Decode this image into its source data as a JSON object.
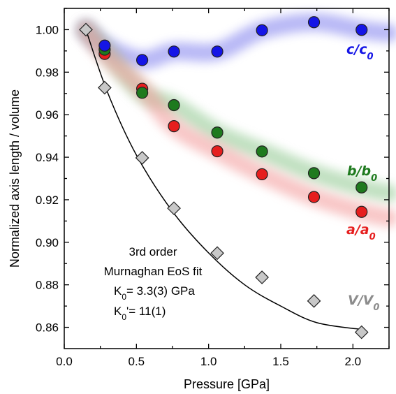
{
  "chart_data": {
    "type": "scatter",
    "xlabel": "Pressure [GPa]",
    "ylabel": "Normalized axis length / volume",
    "xlim": [
      0.0,
      2.25
    ],
    "ylim": [
      0.85,
      1.01
    ],
    "xticks": [
      "0.0",
      "0.5",
      "1.0",
      "1.5",
      "2.0"
    ],
    "yticks": [
      "0.86",
      "0.88",
      "0.90",
      "0.92",
      "0.94",
      "0.96",
      "0.98",
      "1.00"
    ],
    "grid": false,
    "series": [
      {
        "name": "c/c0",
        "label_main": "c/c",
        "label_sub": "0",
        "color": "#1515e6",
        "band_color": "#7f7fee",
        "marker": "circle",
        "points": [
          [
            0.28,
            0.9925
          ],
          [
            0.54,
            0.9857
          ],
          [
            0.76,
            0.9897
          ],
          [
            1.06,
            0.9897
          ],
          [
            1.37,
            0.9997
          ],
          [
            1.73,
            1.0035
          ],
          [
            2.06,
            0.9999
          ]
        ]
      },
      {
        "name": "b/b0",
        "label_main": "b/b",
        "label_sub": "0",
        "color": "#1e7a1e",
        "band_color": "#8fc88f",
        "marker": "circle",
        "points": [
          [
            0.28,
            0.9906
          ],
          [
            0.54,
            0.9703
          ],
          [
            0.76,
            0.9645
          ],
          [
            1.06,
            0.9516
          ],
          [
            1.37,
            0.9427
          ],
          [
            1.73,
            0.9325
          ],
          [
            2.06,
            0.9258
          ]
        ]
      },
      {
        "name": "a/a0",
        "label_main": "a/a",
        "label_sub": "0",
        "color": "#e61e1e",
        "band_color": "#f39a9a",
        "marker": "circle",
        "points": [
          [
            0.28,
            0.9886
          ],
          [
            0.54,
            0.9722
          ],
          [
            0.76,
            0.9546
          ],
          [
            1.06,
            0.9428
          ],
          [
            1.37,
            0.932
          ],
          [
            1.73,
            0.9213
          ],
          [
            2.06,
            0.9143
          ]
        ]
      },
      {
        "name": "V/V0",
        "label_main": "V/V",
        "label_sub": "0",
        "color": "#c8c8c8",
        "label_color": "#8c8c8c",
        "marker": "diamond",
        "points": [
          [
            0.15,
            1.0
          ],
          [
            0.28,
            0.9727
          ],
          [
            0.54,
            0.9397
          ],
          [
            0.76,
            0.916
          ],
          [
            1.06,
            0.8949
          ],
          [
            1.37,
            0.8835
          ],
          [
            1.73,
            0.8724
          ],
          [
            2.06,
            0.8577
          ]
        ]
      }
    ],
    "fit": {
      "type": "line",
      "color": "#000000",
      "points": [
        [
          0.15,
          1.0
        ],
        [
          0.3,
          0.9705
        ],
        [
          0.5,
          0.941
        ],
        [
          0.75,
          0.9145
        ],
        [
          1.0,
          0.895
        ],
        [
          1.25,
          0.88
        ],
        [
          1.5,
          0.87
        ],
        [
          1.75,
          0.8622
        ],
        [
          2.06,
          0.859
        ]
      ]
    },
    "annotation": {
      "line1": "3rd order",
      "line2": "Murnaghan EoS fit",
      "line3_prefix": "K",
      "line3_sub": "0",
      "line3_rest": "= 3.3(3) GPa",
      "line4_prefix": "K",
      "line4_sub": "0",
      "line4_rest": "'= 11(1)"
    }
  }
}
